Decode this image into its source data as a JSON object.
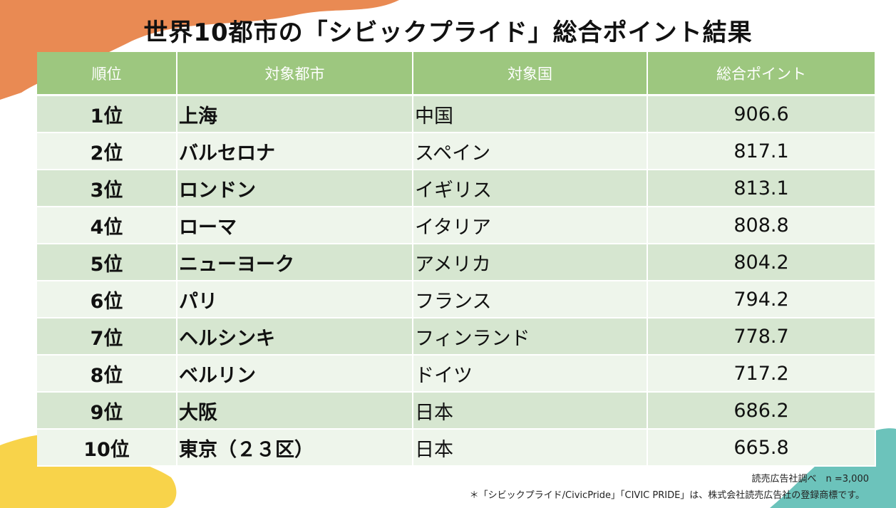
{
  "header": {
    "title": "世界10都市の「シビックプライド」総合ポイント結果"
  },
  "table": {
    "columns": [
      "順位",
      "対象都市",
      "対象国",
      "総合ポイント"
    ],
    "rows": [
      [
        "1位",
        "上海",
        "中国",
        906.6
      ],
      [
        "2位",
        "バルセロナ",
        "スペイン",
        817.1
      ],
      [
        "3位",
        "ロンドン",
        "イギリス",
        813.1
      ],
      [
        "4位",
        "ローマ",
        "イタリア",
        808.8
      ],
      [
        "5位",
        "ニューヨーク",
        "アメリカ",
        804.2
      ],
      [
        "6位",
        "パリ",
        "フランス",
        794.2
      ],
      [
        "7位",
        "ヘルシンキ",
        "フィンランド",
        778.7
      ],
      [
        "8位",
        "ベルリン",
        "ドイツ",
        717.2
      ],
      [
        "9位",
        "大阪",
        "日本",
        686.2
      ],
      [
        "10位",
        "東京（２３区）",
        "日本",
        665.8
      ]
    ]
  },
  "footer": {
    "source": "読売広告社調べ　n =3,000",
    "trademark": "＊「シビックプライド/CivicPride」「CIVIC PRIDE」は、株式会社読売広告社の登録商標です。"
  }
}
